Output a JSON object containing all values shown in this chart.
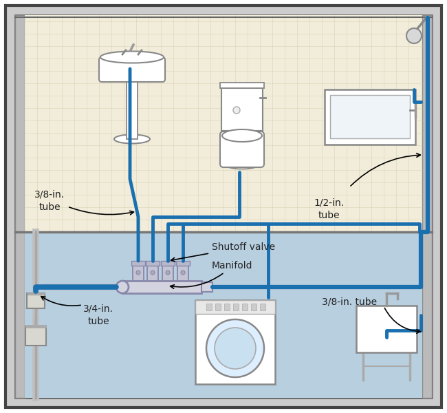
{
  "pipe_color": "#1a6faf",
  "pipe_lw_38": 3.5,
  "pipe_lw_12": 4.5,
  "pipe_lw_34": 5.5,
  "bg_upper": "#f2edda",
  "bg_lower": "#b8cfe0",
  "grid_color": "#cfc9a8",
  "border_color": "#444444",
  "manifold_color": "#d4d4e0",
  "valve_color": "#c4c4d4",
  "text_color": "#222222",
  "label_shutoff": "Shutoff valve",
  "label_manifold": "Manifold",
  "label_38a": "3/8-in.\ntube",
  "label_34": "3/4-in.\ntube",
  "label_12": "1/2-in.\ntube",
  "label_38b": "3/8-in. tube",
  "fix_color": "#888888",
  "wall_color": "#cccccc",
  "white": "#ffffff"
}
